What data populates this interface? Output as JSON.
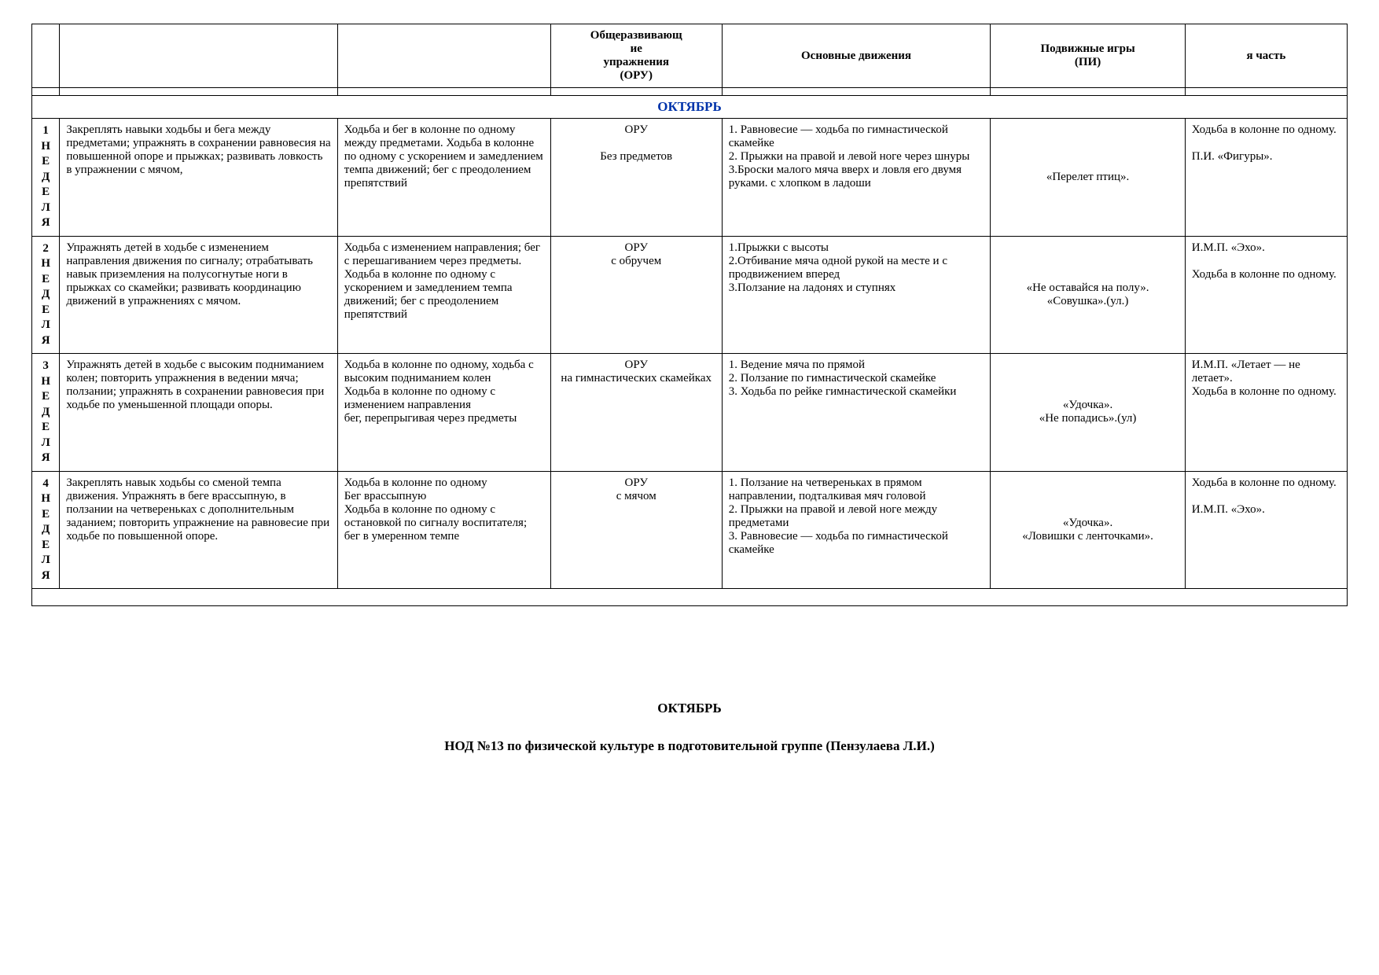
{
  "headers": {
    "oru": "Общеразвивающ\nие\nупражнения\n(ОРУ)",
    "main": "Основные движения",
    "games": "Подвижные игры\n(ПИ)",
    "part": "я часть"
  },
  "month": "ОКТЯБРЬ",
  "weeks": [
    {
      "label": "1\nН\nЕ\nД\nЕ\nЛ\nЯ",
      "task": "Закреплять навыки ходьбы и бега между предметами; упражнять в сохранении равновесия на повышенной опоре и прыжках; развивать ловкость в упражнении с мячом,",
      "walk": "Ходьба и бег в колонне по одному между предметами. Ходьба в колонне по одному с ускорением и замедлением тем­па движений; бег с преодолением препятствий",
      "oru": "ОРУ\n\nБез предметов",
      "main": "1.      Равновесие — ходьба по гимнастической скамейке\n 2. Прыжки на правой и левой ноге через шнуры\n 3.Броски малого мяча вверх и ловля его двумя руками.  с хлопком в ладоши",
      "games": "«Перелет птиц».",
      "part": "Ходьба в колонне по одному.\n\nП.И. «Фигуры»."
    },
    {
      "label": "2\nН\nЕ\nД\nЕ\nЛ\nЯ",
      "task": "Упражнять детей в ходьбе с изменением направления движения по сигналу; отрабатывать навык приземления на полусогнутые ноги в прыжках со скамейки; развивать координацию движений в упражнениях с мячом.",
      "walk": "Ходьба с изменением направления; бег с перешагиванием через предметы. Ходьба в колонне по одному с ускорением и замедлением темпа движений; бег с преодолением препятствий",
      "oru": "ОРУ\nс обручем",
      "main": "1.Прыжки с высоты\n2.Отбивание мяча одной рукой на месте и с продвижением вперед\n3.Ползание на ладонях и ступнях",
      "games": "«Не оставайся на полу».\n«Совушка».(ул.)",
      "part": "И.М.П. «Эхо».\n\nХодьба в колонне по одному."
    },
    {
      "label": "3\nН\nЕ\nД\nЕ\nЛ\nЯ",
      "task": "Упражнять детей в ходьбе с высоким подниманием колен; повторить упражнения в ведении мяча; ползании; упражнять в сохранении равновесия при ходьбе по уменьшенной площади опоры.",
      "walk": "Ходьба в колонне по одному, ходьба с высоким подниманием колен\nХодьба в колонне по одному с изменением направления\nбег, перепрыгивая через предметы",
      "oru": "ОРУ\nна гимнастических скамейках",
      "main": "1.  Ведение мяча по прямой\n2.  Ползание по гимнастической скамейке\n3. Ходьба по рейке гимнастической скамейки",
      "games": "«Удочка».\n«Не попадись».(ул)",
      "part": "И.М.П. «Летает — не летает».\nХодьба в колонне по одному."
    },
    {
      "label": "4\nН\nЕ\nД\nЕ\nЛ\nЯ",
      "task": "Закреплять навык ходьбы со сменой темпа движения. Упражнять в беге врассыпную, в ползании на четвереньках с дополнительным заданием; повторить упражнение на равновесие при ходьбе по повышенной опоре.",
      "walk": "Ходьба в колонне по одному\nБег врассыпную\nХодьба в колонне по одному с остановкой по сигналу воспи­тателя; бег в умеренном темпе",
      "oru": "ОРУ\nс мячом",
      "main": "1.  Ползание на четвереньках в прямом направлении, подталкивая мяч головой\n2.  Прыжки на правой и левой ноге между предметами\n3.  Равновесие — ходьба по гимнастической скамейке",
      "games": "«Удочка».\n«Ловишки с ленточками».",
      "part": "Ходьба в колонне по одному.\n\nИ.М.П. «Эхо»."
    }
  ],
  "footer1": "ОКТЯБРЬ",
  "footer2": "НОД №13 по физической культуре в подготовительной группе (Пензулаева Л.И.)"
}
